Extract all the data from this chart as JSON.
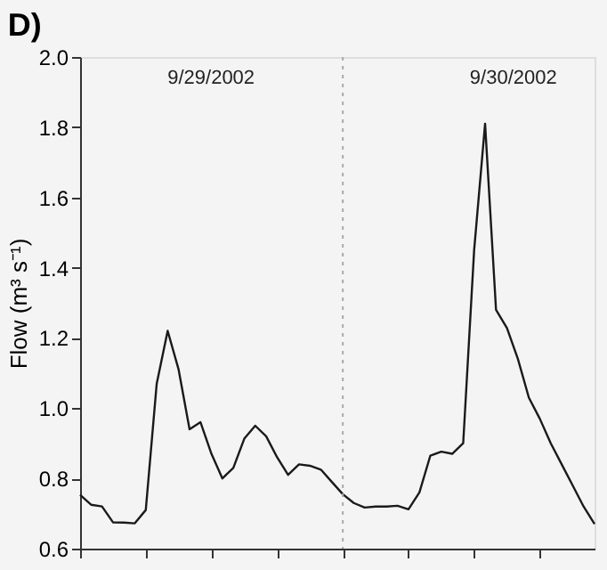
{
  "chart_data": {
    "type": "line",
    "title": "D)",
    "ylabel": "Flow (m³ s⁻¹)",
    "categories": [
      null,
      null,
      null,
      null,
      null,
      null,
      null,
      null,
      null,
      null,
      null,
      null,
      null,
      null,
      null,
      null,
      null,
      null,
      null,
      null,
      null,
      null,
      null,
      null,
      null,
      null,
      null,
      null,
      null,
      null,
      null,
      null,
      null,
      null,
      null,
      null,
      null,
      null,
      null,
      null,
      null,
      null,
      null,
      null,
      null,
      null,
      null,
      null
    ],
    "series": [
      {
        "color": "#1a1a1a",
        "values": [
          0.753,
          0.725,
          0.72,
          0.675,
          0.674,
          0.672,
          0.71,
          1.07,
          1.22,
          1.11,
          0.94,
          0.96,
          0.87,
          0.8,
          0.83,
          0.913,
          0.95,
          0.92,
          0.86,
          0.81,
          0.84,
          0.836,
          0.825,
          0.79,
          0.755,
          0.73,
          0.717,
          0.72,
          0.72,
          0.722,
          0.712,
          0.76,
          0.865,
          0.876,
          0.87,
          0.9,
          1.45,
          1.81,
          1.28,
          1.228,
          1.14,
          1.03,
          0.97,
          0.9,
          0.84,
          0.78,
          0.72,
          0.67
        ]
      }
    ],
    "ylim": [
      0.6,
      2.0
    ],
    "yticks": [
      0.6,
      0.8,
      {
        "value": 1,
        "label": "1.0"
      },
      1.2,
      1.4,
      1.6,
      1.8,
      {
        "value": 2,
        "label": "2.0"
      }
    ],
    "grid": false,
    "line_style": "solid",
    "annotations": [
      "9/29/2002",
      "9/30/2002"
    ]
  }
}
